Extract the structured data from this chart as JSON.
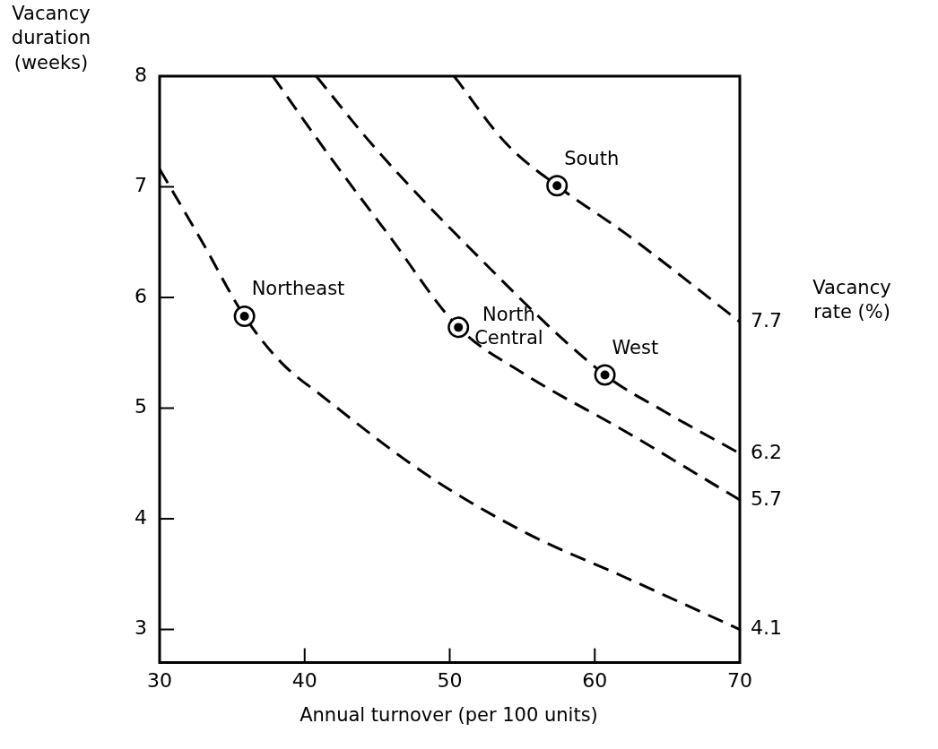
{
  "chart_data": {
    "type": "line",
    "xlabel": "Annual turnover (per 100 units)",
    "ylabel": "Vacancy duration (weeks)",
    "y2label": "Vacancy rate (%)",
    "xlim": [
      30,
      70
    ],
    "xticks": [
      30,
      40,
      50,
      60,
      70
    ],
    "ylim": [
      2.7,
      8
    ],
    "yticks": [
      3,
      4,
      5,
      6,
      7,
      8
    ],
    "grid": false,
    "legend": false,
    "line_style": "dashed",
    "series": [
      {
        "name": "4.1",
        "color": "#000000",
        "marker": "none",
        "x": [
          30,
          32.9,
          35.85,
          38.4,
          41.1,
          48.5,
          55.3,
          62.1,
          70
        ],
        "values": [
          7.16,
          6.51,
          5.83,
          5.41,
          5.12,
          4.39,
          3.87,
          3.47,
          3.0
        ]
      },
      {
        "name": "5.7",
        "color": "#000000",
        "marker": "none",
        "x": [
          37.8,
          41.7,
          45.7,
          50.6,
          55,
          62.1,
          70
        ],
        "values": [
          8,
          7.28,
          6.58,
          5.73,
          5.32,
          4.79,
          4.17
        ]
      },
      {
        "name": "6.2",
        "color": "#000000",
        "marker": "none",
        "x": [
          40.8,
          44.6,
          51.2,
          60.7,
          64.8,
          70
        ],
        "values": [
          8,
          7.39,
          6.47,
          5.3,
          4.97,
          4.59
        ]
      },
      {
        "name": "7.7",
        "color": "#000000",
        "marker": "none",
        "x": [
          50.3,
          53.9,
          57.4,
          62.1,
          70
        ],
        "values": [
          8,
          7.39,
          7.01,
          6.58,
          5.78
        ]
      },
      {
        "type": "scatter",
        "color": "#000000",
        "marker": "circle",
        "x": [
          35.85,
          50.6,
          60.7,
          57.4
        ],
        "values": [
          5.83,
          5.73,
          5.3,
          7.01
        ]
      }
    ],
    "annotations": [
      {
        "text": "Northeast",
        "x": 35.85,
        "y": 5.83
      },
      {
        "text": "North Central",
        "x": 50.6,
        "y": 5.73
      },
      {
        "text": "West",
        "x": 60.7,
        "y": 5.3
      },
      {
        "text": "South",
        "x": 57.4,
        "y": 7.01
      }
    ]
  }
}
